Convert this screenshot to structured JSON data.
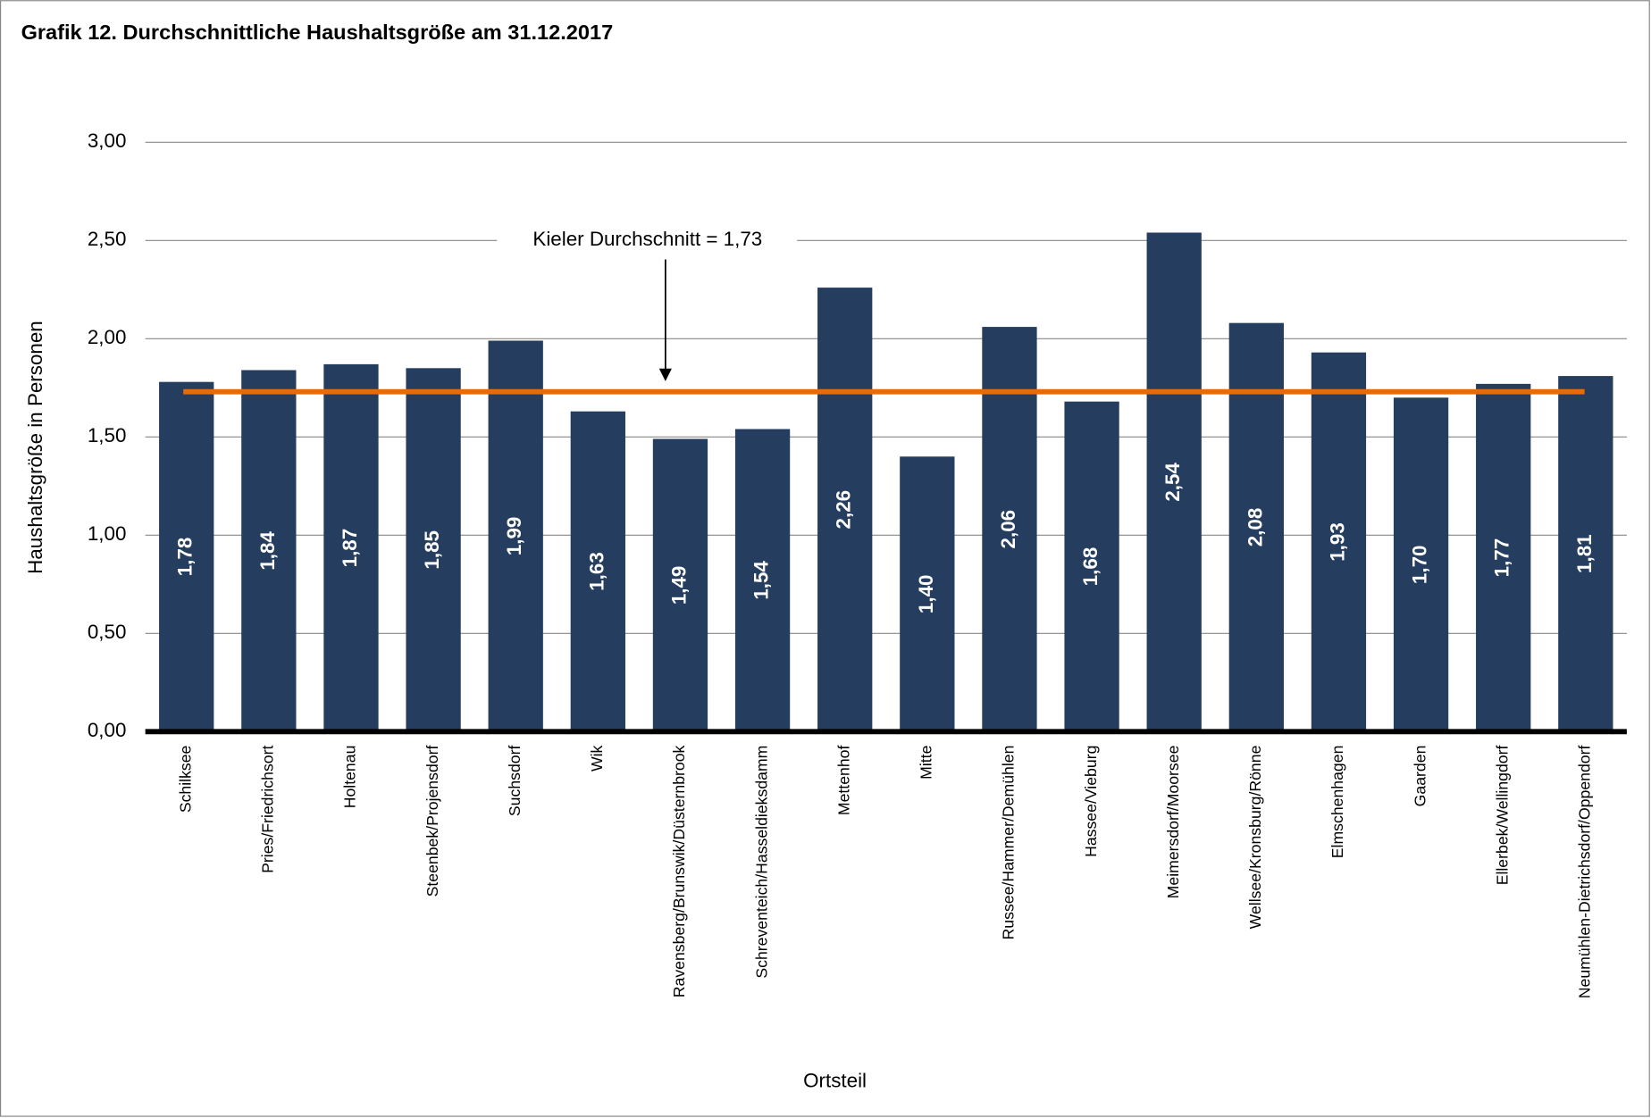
{
  "chart_data": {
    "type": "bar",
    "title": "Grafik 12. Durchschnittliche Haushaltsgröße am 31.12.2017",
    "categories": [
      "Schilksee",
      "Pries/Friedrichsort",
      "Holtenau",
      "Steenbek/Projensdorf",
      "Suchsdorf",
      "Wik",
      "Ravensberg/Brunswik/Düsternbrook",
      "Schreventeich/Hasseldieksdamm",
      "Mettenhof",
      "Mitte",
      "Russee/Hammer/Demühlen",
      "Hassee/Vieburg",
      "Meimersdorf/Moorsee",
      "Wellsee/Kronsburg/Rönne",
      "Elmschenhagen",
      "Gaarden",
      "Ellerbek/Wellingdorf",
      "Neumühlen-Dietrichsdorf/Oppendorf"
    ],
    "values": [
      1.78,
      1.84,
      1.87,
      1.85,
      1.99,
      1.63,
      1.49,
      1.54,
      2.26,
      1.4,
      2.06,
      1.68,
      2.54,
      2.08,
      1.93,
      1.7,
      1.77,
      1.81
    ],
    "value_labels": [
      "1,78",
      "1,84",
      "1,87",
      "1,85",
      "1,99",
      "1,63",
      "1,49",
      "1,54",
      "2,26",
      "1,40",
      "2,06",
      "1,68",
      "2,54",
      "2,08",
      "1,93",
      "1,70",
      "1,77",
      "1,81"
    ],
    "color": "#253d5e",
    "ylim": [
      0,
      3
    ],
    "yticks": [
      {
        "value": 0,
        "label": "0,00"
      },
      {
        "value": 0.5,
        "label": "0,50"
      },
      {
        "value": 1,
        "label": "1,00"
      },
      {
        "value": 1.5,
        "label": "1,50"
      },
      {
        "value": 2,
        "label": "2,00"
      },
      {
        "value": 2.5,
        "label": "2,50"
      },
      {
        "value": 3,
        "label": "3,00"
      }
    ],
    "grid": true,
    "ylabel": "Haushaltsgröße in Personen",
    "xlabel": "Ortsteil",
    "reference": {
      "value": 1.73,
      "label": "Kieler Durchschnitt = 1,73",
      "color": "#e46c0a"
    }
  }
}
